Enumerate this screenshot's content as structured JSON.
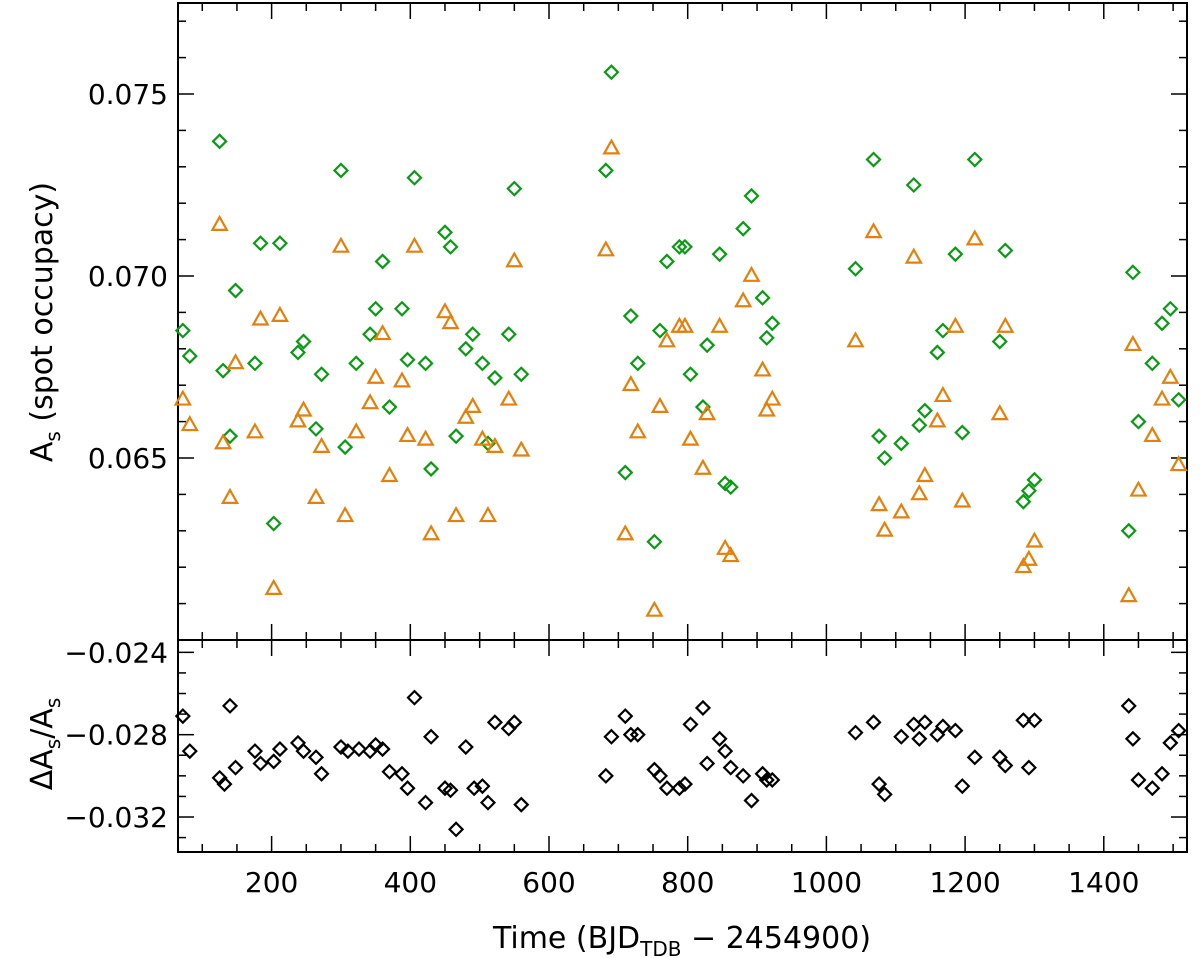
{
  "colors": {
    "green": "#0a9a16",
    "orange": "#e4800c",
    "black": "#000000"
  },
  "chart_data": [
    {
      "type": "scatter",
      "panel": "top",
      "ylabel_main": "A",
      "ylabel_sub": "s",
      "ylabel_rest": " (spot occupacy)",
      "xlim": [
        65,
        1520
      ],
      "ylim": [
        0.06,
        0.0775
      ],
      "yticks_major": [
        0.065,
        0.07,
        0.075
      ],
      "ytick_labels": [
        "0.065",
        "0.070",
        "0.075"
      ],
      "series": [
        {
          "name": "green diamonds",
          "marker": "diamond",
          "color": "#0a9a16",
          "points": [
            [
              72,
              0.0685
            ],
            [
              82,
              0.0678
            ],
            [
              125,
              0.0737
            ],
            [
              130,
              0.0674
            ],
            [
              140,
              0.0656
            ],
            [
              148,
              0.0696
            ],
            [
              176,
              0.0676
            ],
            [
              184,
              0.0709
            ],
            [
              203,
              0.0632
            ],
            [
              212,
              0.0709
            ],
            [
              238,
              0.0679
            ],
            [
              246,
              0.0682
            ],
            [
              264,
              0.0658
            ],
            [
              272,
              0.0673
            ],
            [
              300,
              0.0729
            ],
            [
              306,
              0.0653
            ],
            [
              322,
              0.0676
            ],
            [
              342,
              0.0684
            ],
            [
              350,
              0.0691
            ],
            [
              360,
              0.0704
            ],
            [
              370,
              0.0664
            ],
            [
              388,
              0.0691
            ],
            [
              396,
              0.0677
            ],
            [
              406,
              0.0727
            ],
            [
              422,
              0.0676
            ],
            [
              430,
              0.0647
            ],
            [
              450,
              0.0712
            ],
            [
              458,
              0.0708
            ],
            [
              466,
              0.0656
            ],
            [
              480,
              0.068
            ],
            [
              490,
              0.0684
            ],
            [
              504,
              0.0676
            ],
            [
              512,
              0.0654
            ],
            [
              522,
              0.0672
            ],
            [
              542,
              0.0684
            ],
            [
              550,
              0.0724
            ],
            [
              560,
              0.0673
            ],
            [
              682,
              0.0729
            ],
            [
              690,
              0.0756
            ],
            [
              710,
              0.0646
            ],
            [
              718,
              0.0689
            ],
            [
              728,
              0.0676
            ],
            [
              752,
              0.0627
            ],
            [
              760,
              0.0685
            ],
            [
              770,
              0.0704
            ],
            [
              788,
              0.0708
            ],
            [
              796,
              0.0708
            ],
            [
              804,
              0.0673
            ],
            [
              822,
              0.0664
            ],
            [
              828,
              0.0681
            ],
            [
              846,
              0.0706
            ],
            [
              854,
              0.0643
            ],
            [
              862,
              0.0642
            ],
            [
              880,
              0.0713
            ],
            [
              892,
              0.0722
            ],
            [
              908,
              0.0694
            ],
            [
              914,
              0.0683
            ],
            [
              922,
              0.0687
            ],
            [
              1042,
              0.0702
            ],
            [
              1068,
              0.0732
            ],
            [
              1076,
              0.0656
            ],
            [
              1084,
              0.065
            ],
            [
              1108,
              0.0654
            ],
            [
              1126,
              0.0725
            ],
            [
              1134,
              0.0659
            ],
            [
              1142,
              0.0663
            ],
            [
              1160,
              0.0679
            ],
            [
              1168,
              0.0685
            ],
            [
              1186,
              0.0706
            ],
            [
              1196,
              0.0657
            ],
            [
              1214,
              0.0732
            ],
            [
              1250,
              0.0682
            ],
            [
              1258,
              0.0707
            ],
            [
              1284,
              0.0638
            ],
            [
              1292,
              0.0641
            ],
            [
              1300,
              0.0644
            ],
            [
              1436,
              0.063
            ],
            [
              1442,
              0.0701
            ],
            [
              1450,
              0.066
            ],
            [
              1470,
              0.0676
            ],
            [
              1484,
              0.0687
            ],
            [
              1496,
              0.0691
            ],
            [
              1508,
              0.0666
            ]
          ]
        },
        {
          "name": "orange triangles",
          "marker": "triangle",
          "color": "#e4800c",
          "points": [
            [
              72,
              0.0666
            ],
            [
              82,
              0.0659
            ],
            [
              125,
              0.0714
            ],
            [
              130,
              0.0654
            ],
            [
              140,
              0.0639
            ],
            [
              148,
              0.0676
            ],
            [
              176,
              0.0657
            ],
            [
              184,
              0.0688
            ],
            [
              203,
              0.0614
            ],
            [
              212,
              0.0689
            ],
            [
              238,
              0.066
            ],
            [
              246,
              0.0663
            ],
            [
              264,
              0.0639
            ],
            [
              272,
              0.0653
            ],
            [
              300,
              0.0708
            ],
            [
              306,
              0.0634
            ],
            [
              322,
              0.0657
            ],
            [
              342,
              0.0665
            ],
            [
              350,
              0.0672
            ],
            [
              360,
              0.0684
            ],
            [
              370,
              0.0645
            ],
            [
              388,
              0.0671
            ],
            [
              396,
              0.0656
            ],
            [
              406,
              0.0708
            ],
            [
              422,
              0.0655
            ],
            [
              430,
              0.0629
            ],
            [
              450,
              0.069
            ],
            [
              458,
              0.0687
            ],
            [
              466,
              0.0634
            ],
            [
              480,
              0.0661
            ],
            [
              490,
              0.0664
            ],
            [
              504,
              0.0655
            ],
            [
              512,
              0.0634
            ],
            [
              522,
              0.0653
            ],
            [
              542,
              0.0666
            ],
            [
              550,
              0.0704
            ],
            [
              560,
              0.0652
            ],
            [
              682,
              0.0707
            ],
            [
              690,
              0.0735
            ],
            [
              710,
              0.0629
            ],
            [
              718,
              0.067
            ],
            [
              728,
              0.0657
            ],
            [
              752,
              0.0608
            ],
            [
              760,
              0.0664
            ],
            [
              770,
              0.0682
            ],
            [
              788,
              0.0686
            ],
            [
              796,
              0.0686
            ],
            [
              804,
              0.0655
            ],
            [
              822,
              0.0647
            ],
            [
              828,
              0.0662
            ],
            [
              846,
              0.0686
            ],
            [
              854,
              0.0625
            ],
            [
              862,
              0.0623
            ],
            [
              880,
              0.0693
            ],
            [
              892,
              0.07
            ],
            [
              908,
              0.0674
            ],
            [
              914,
              0.0663
            ],
            [
              922,
              0.0666
            ],
            [
              1042,
              0.0682
            ],
            [
              1068,
              0.0712
            ],
            [
              1076,
              0.0637
            ],
            [
              1084,
              0.063
            ],
            [
              1108,
              0.0635
            ],
            [
              1126,
              0.0705
            ],
            [
              1134,
              0.064
            ],
            [
              1142,
              0.0645
            ],
            [
              1160,
              0.066
            ],
            [
              1168,
              0.0667
            ],
            [
              1186,
              0.0686
            ],
            [
              1196,
              0.0638
            ],
            [
              1214,
              0.071
            ],
            [
              1250,
              0.0662
            ],
            [
              1258,
              0.0686
            ],
            [
              1284,
              0.062
            ],
            [
              1292,
              0.0622
            ],
            [
              1300,
              0.0627
            ],
            [
              1436,
              0.0612
            ],
            [
              1442,
              0.0681
            ],
            [
              1450,
              0.0641
            ],
            [
              1470,
              0.0656
            ],
            [
              1484,
              0.0666
            ],
            [
              1496,
              0.0672
            ],
            [
              1508,
              0.0648
            ]
          ]
        }
      ]
    },
    {
      "type": "scatter",
      "panel": "bottom",
      "ylabel_main": "ΔA",
      "ylabel_sub1": "s",
      "ylabel_mid": "/A",
      "ylabel_sub2": "s",
      "xlabel_main": "Time (BJD",
      "xlabel_sub": "TDB",
      "xlabel_rest": " − 2454900)",
      "xlim": [
        65,
        1520
      ],
      "ylim": [
        -0.0337,
        -0.0234
      ],
      "yticks_major": [
        -0.032,
        -0.028,
        -0.024
      ],
      "ytick_labels": [
        "−0.032",
        "−0.028",
        "−0.024"
      ],
      "xticks_major": [
        200,
        400,
        600,
        800,
        1000,
        1200,
        1400
      ],
      "xtick_labels": [
        "200",
        "400",
        "600",
        "800",
        "1000",
        "1200",
        "1400"
      ],
      "series": [
        {
          "name": "black diamonds",
          "marker": "diamond",
          "color": "#000000",
          "points": [
            [
              72,
              -0.0271
            ],
            [
              82,
              -0.0288
            ],
            [
              125,
              -0.0301
            ],
            [
              132,
              -0.0304
            ],
            [
              140,
              -0.0266
            ],
            [
              148,
              -0.0296
            ],
            [
              176,
              -0.0288
            ],
            [
              184,
              -0.0294
            ],
            [
              203,
              -0.0293
            ],
            [
              212,
              -0.0287
            ],
            [
              238,
              -0.0284
            ],
            [
              246,
              -0.0288
            ],
            [
              264,
              -0.0291
            ],
            [
              272,
              -0.0299
            ],
            [
              300,
              -0.0286
            ],
            [
              310,
              -0.0288
            ],
            [
              326,
              -0.0287
            ],
            [
              342,
              -0.0288
            ],
            [
              350,
              -0.0285
            ],
            [
              360,
              -0.0287
            ],
            [
              370,
              -0.0298
            ],
            [
              388,
              -0.0299
            ],
            [
              396,
              -0.0306
            ],
            [
              406,
              -0.0262
            ],
            [
              422,
              -0.0313
            ],
            [
              430,
              -0.0281
            ],
            [
              450,
              -0.0306
            ],
            [
              458,
              -0.0307
            ],
            [
              466,
              -0.0326
            ],
            [
              480,
              -0.0286
            ],
            [
              492,
              -0.0306
            ],
            [
              504,
              -0.0305
            ],
            [
              512,
              -0.0313
            ],
            [
              522,
              -0.0274
            ],
            [
              542,
              -0.0277
            ],
            [
              550,
              -0.0274
            ],
            [
              560,
              -0.0314
            ],
            [
              682,
              -0.03
            ],
            [
              690,
              -0.0281
            ],
            [
              710,
              -0.0271
            ],
            [
              718,
              -0.028
            ],
            [
              728,
              -0.028
            ],
            [
              752,
              -0.0297
            ],
            [
              760,
              -0.03
            ],
            [
              770,
              -0.0306
            ],
            [
              788,
              -0.0306
            ],
            [
              796,
              -0.0304
            ],
            [
              804,
              -0.0275
            ],
            [
              822,
              -0.0267
            ],
            [
              828,
              -0.0294
            ],
            [
              846,
              -0.0282
            ],
            [
              854,
              -0.0288
            ],
            [
              862,
              -0.0296
            ],
            [
              880,
              -0.03
            ],
            [
              892,
              -0.0312
            ],
            [
              908,
              -0.0299
            ],
            [
              914,
              -0.0302
            ],
            [
              922,
              -0.0302
            ],
            [
              1042,
              -0.0279
            ],
            [
              1068,
              -0.0274
            ],
            [
              1076,
              -0.0304
            ],
            [
              1084,
              -0.0309
            ],
            [
              1108,
              -0.0281
            ],
            [
              1126,
              -0.0275
            ],
            [
              1134,
              -0.0282
            ],
            [
              1142,
              -0.0274
            ],
            [
              1160,
              -0.028
            ],
            [
              1168,
              -0.0276
            ],
            [
              1186,
              -0.0278
            ],
            [
              1196,
              -0.0305
            ],
            [
              1214,
              -0.0291
            ],
            [
              1250,
              -0.0291
            ],
            [
              1258,
              -0.0295
            ],
            [
              1284,
              -0.0273
            ],
            [
              1292,
              -0.0296
            ],
            [
              1300,
              -0.0273
            ],
            [
              1436,
              -0.0266
            ],
            [
              1442,
              -0.0282
            ],
            [
              1450,
              -0.0302
            ],
            [
              1470,
              -0.0306
            ],
            [
              1484,
              -0.0299
            ],
            [
              1496,
              -0.0284
            ],
            [
              1508,
              -0.0278
            ]
          ]
        }
      ]
    }
  ]
}
